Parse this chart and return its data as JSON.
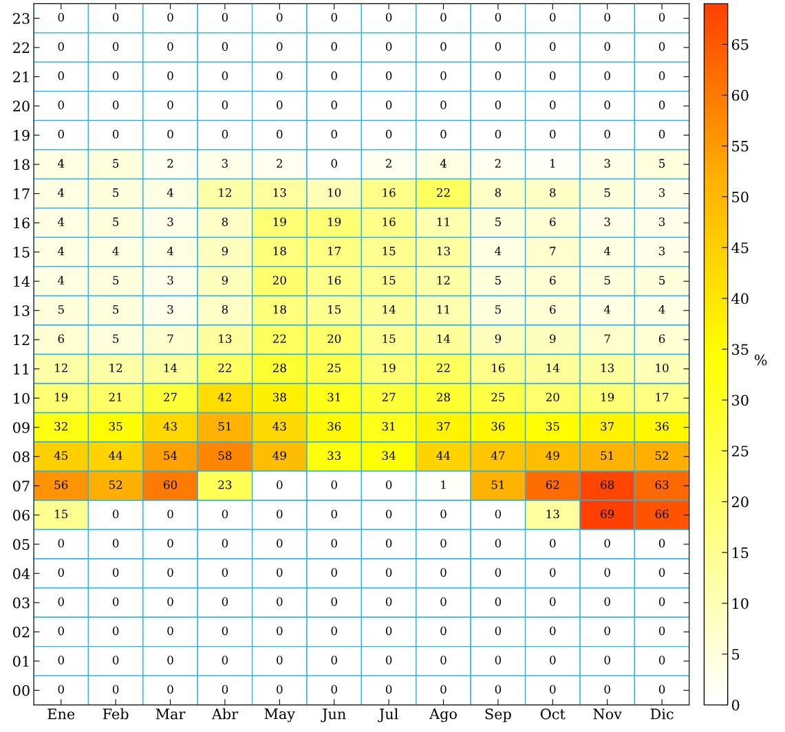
{
  "chart_data": {
    "type": "heatmap",
    "clabel": "%",
    "categories": [
      "Ene",
      "Feb",
      "Mar",
      "Abr",
      "May",
      "Jun",
      "Jul",
      "Ago",
      "Sep",
      "Oct",
      "Nov",
      "Dic"
    ],
    "y_categories": [
      "23",
      "22",
      "21",
      "20",
      "19",
      "18",
      "17",
      "16",
      "15",
      "14",
      "13",
      "12",
      "11",
      "10",
      "09",
      "08",
      "07",
      "06",
      "05",
      "04",
      "03",
      "02",
      "01",
      "00"
    ],
    "cells": [
      [
        0,
        0,
        0,
        0,
        0,
        0,
        0,
        0,
        0,
        0,
        0,
        0
      ],
      [
        0,
        0,
        0,
        0,
        0,
        0,
        0,
        0,
        0,
        0,
        0,
        0
      ],
      [
        0,
        0,
        0,
        0,
        0,
        0,
        0,
        0,
        0,
        0,
        0,
        0
      ],
      [
        0,
        0,
        0,
        0,
        0,
        0,
        0,
        0,
        0,
        0,
        0,
        0
      ],
      [
        0,
        0,
        0,
        0,
        0,
        0,
        0,
        0,
        0,
        0,
        0,
        0
      ],
      [
        4,
        5,
        2,
        3,
        2,
        0,
        2,
        4,
        2,
        1,
        3,
        5
      ],
      [
        4,
        5,
        4,
        12,
        13,
        10,
        16,
        22,
        8,
        8,
        5,
        3
      ],
      [
        4,
        5,
        3,
        8,
        19,
        19,
        16,
        11,
        5,
        6,
        3,
        3
      ],
      [
        4,
        4,
        4,
        9,
        18,
        17,
        15,
        13,
        4,
        7,
        4,
        3
      ],
      [
        4,
        5,
        3,
        9,
        20,
        16,
        15,
        12,
        5,
        6,
        5,
        5
      ],
      [
        5,
        5,
        3,
        8,
        18,
        15,
        14,
        11,
        5,
        6,
        4,
        4
      ],
      [
        6,
        5,
        7,
        13,
        22,
        20,
        15,
        14,
        9,
        9,
        7,
        6
      ],
      [
        12,
        12,
        14,
        22,
        28,
        25,
        19,
        22,
        16,
        14,
        13,
        10
      ],
      [
        19,
        21,
        27,
        42,
        38,
        31,
        27,
        28,
        25,
        20,
        19,
        17
      ],
      [
        32,
        35,
        43,
        51,
        43,
        36,
        31,
        37,
        36,
        35,
        37,
        36
      ],
      [
        45,
        44,
        54,
        58,
        49,
        33,
        34,
        44,
        47,
        49,
        51,
        52
      ],
      [
        56,
        52,
        60,
        23,
        0,
        0,
        0,
        1,
        51,
        62,
        68,
        63
      ],
      [
        15,
        0,
        0,
        0,
        0,
        0,
        0,
        0,
        0,
        13,
        69,
        66
      ],
      [
        0,
        0,
        0,
        0,
        0,
        0,
        0,
        0,
        0,
        0,
        0,
        0
      ],
      [
        0,
        0,
        0,
        0,
        0,
        0,
        0,
        0,
        0,
        0,
        0,
        0
      ],
      [
        0,
        0,
        0,
        0,
        0,
        0,
        0,
        0,
        0,
        0,
        0,
        0
      ],
      [
        0,
        0,
        0,
        0,
        0,
        0,
        0,
        0,
        0,
        0,
        0,
        0
      ],
      [
        0,
        0,
        0,
        0,
        0,
        0,
        0,
        0,
        0,
        0,
        0,
        0
      ],
      [
        0,
        0,
        0,
        0,
        0,
        0,
        0,
        0,
        0,
        0,
        0,
        0
      ]
    ],
    "clim": [
      0,
      69
    ],
    "cticks": [
      0,
      5,
      10,
      15,
      20,
      25,
      30,
      35,
      40,
      45,
      50,
      55,
      60,
      65
    ],
    "data_labels": true
  }
}
